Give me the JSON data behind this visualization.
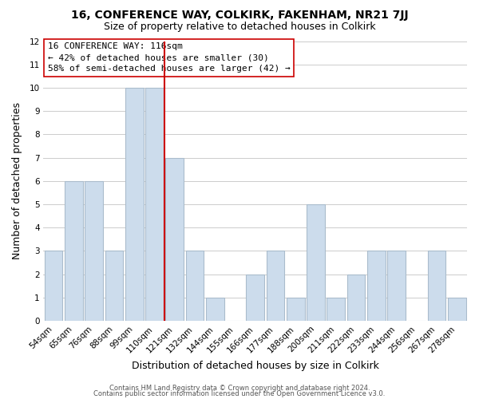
{
  "title": "16, CONFERENCE WAY, COLKIRK, FAKENHAM, NR21 7JJ",
  "subtitle": "Size of property relative to detached houses in Colkirk",
  "xlabel": "Distribution of detached houses by size in Colkirk",
  "ylabel": "Number of detached properties",
  "bar_color": "#ccdcec",
  "bar_edge_color": "#aabccc",
  "categories": [
    "54sqm",
    "65sqm",
    "76sqm",
    "88sqm",
    "99sqm",
    "110sqm",
    "121sqm",
    "132sqm",
    "144sqm",
    "155sqm",
    "166sqm",
    "177sqm",
    "188sqm",
    "200sqm",
    "211sqm",
    "222sqm",
    "233sqm",
    "244sqm",
    "256sqm",
    "267sqm",
    "278sqm"
  ],
  "values": [
    3,
    6,
    6,
    3,
    10,
    10,
    7,
    3,
    1,
    0,
    2,
    3,
    1,
    5,
    1,
    2,
    3,
    3,
    0,
    3,
    1
  ],
  "reference_line_index": 5.5,
  "annotation_title": "16 CONFERENCE WAY: 116sqm",
  "annotation_line1": "← 42% of detached houses are smaller (30)",
  "annotation_line2": "58% of semi-detached houses are larger (42) →",
  "ylim": [
    0,
    12
  ],
  "yticks": [
    0,
    1,
    2,
    3,
    4,
    5,
    6,
    7,
    8,
    9,
    10,
    11,
    12
  ],
  "footer1": "Contains HM Land Registry data © Crown copyright and database right 2024.",
  "footer2": "Contains public sector information licensed under the Open Government Licence v3.0.",
  "background_color": "#ffffff",
  "grid_color": "#cccccc",
  "annotation_box_color": "#ffffff",
  "reference_line_color": "#cc0000",
  "title_fontsize": 10,
  "subtitle_fontsize": 9,
  "axis_label_fontsize": 9,
  "tick_fontsize": 7.5,
  "annotation_fontsize": 8,
  "footer_fontsize": 6.0
}
